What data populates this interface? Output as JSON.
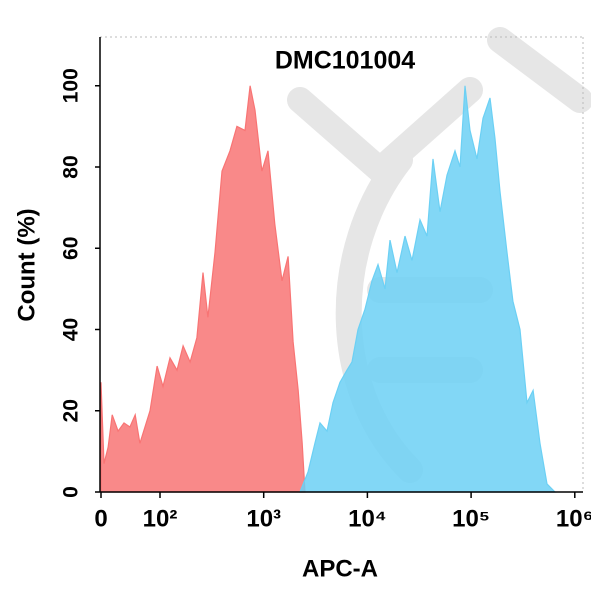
{
  "chart_data": {
    "type": "area",
    "title": "DMC101004",
    "xlabel": "APC-A",
    "ylabel": "Count  (%)",
    "xscale": "logicle",
    "xlim": [
      0,
      1200000
    ],
    "ylim": [
      0,
      112
    ],
    "xticks": [
      0,
      {
        "value": 100,
        "label": "10²"
      },
      {
        "value": 1000,
        "label": "10³"
      },
      {
        "value": 10000,
        "label": "10⁴"
      },
      {
        "value": 100000,
        "label": "10⁵"
      },
      {
        "value": 1000000,
        "label": "10⁶"
      }
    ],
    "yticks": [
      0,
      20,
      40,
      60,
      80,
      100
    ],
    "series": [
      {
        "color": "#f87474",
        "x": [
          0,
          5,
          12,
          19,
          29,
          39,
          49,
          58,
          66,
          83,
          95,
          107,
          125,
          146,
          167,
          195,
          227,
          260,
          290,
          339,
          396,
          473,
          552,
          660,
          740,
          825,
          960,
          1100,
          1280,
          1500,
          1720,
          1920,
          2150,
          2350,
          2500
        ],
        "values": [
          27,
          7,
          11,
          19,
          15,
          17,
          16,
          19,
          12,
          20,
          31,
          26,
          33,
          30,
          36,
          32,
          38,
          54,
          43,
          59,
          79,
          84,
          90,
          89,
          100,
          94,
          79,
          84,
          66,
          52,
          58,
          37,
          25,
          12,
          0
        ]
      },
      {
        "color": "#6cd0f4",
        "x": [
          2240,
          2680,
          3120,
          3490,
          4080,
          4660,
          5440,
          6360,
          7110,
          8110,
          9480,
          11070,
          12650,
          14790,
          16520,
          19300,
          23060,
          26920,
          32150,
          37580,
          42950,
          50120,
          58610,
          69980,
          78190,
          87300,
          97500,
          114000,
          130300,
          152100,
          170000,
          190000,
          222000,
          253000,
          296000,
          346000,
          396000,
          462000,
          540000,
          644000
        ],
        "values": [
          0,
          5,
          12,
          17,
          15,
          22,
          27,
          30,
          32,
          40,
          45,
          52,
          56,
          50,
          62,
          54,
          63,
          57,
          67,
          63,
          82,
          69,
          78,
          84,
          80,
          100,
          89,
          82,
          92,
          97,
          87,
          74,
          59,
          47,
          40,
          22,
          25,
          12,
          2,
          0
        ]
      }
    ]
  }
}
